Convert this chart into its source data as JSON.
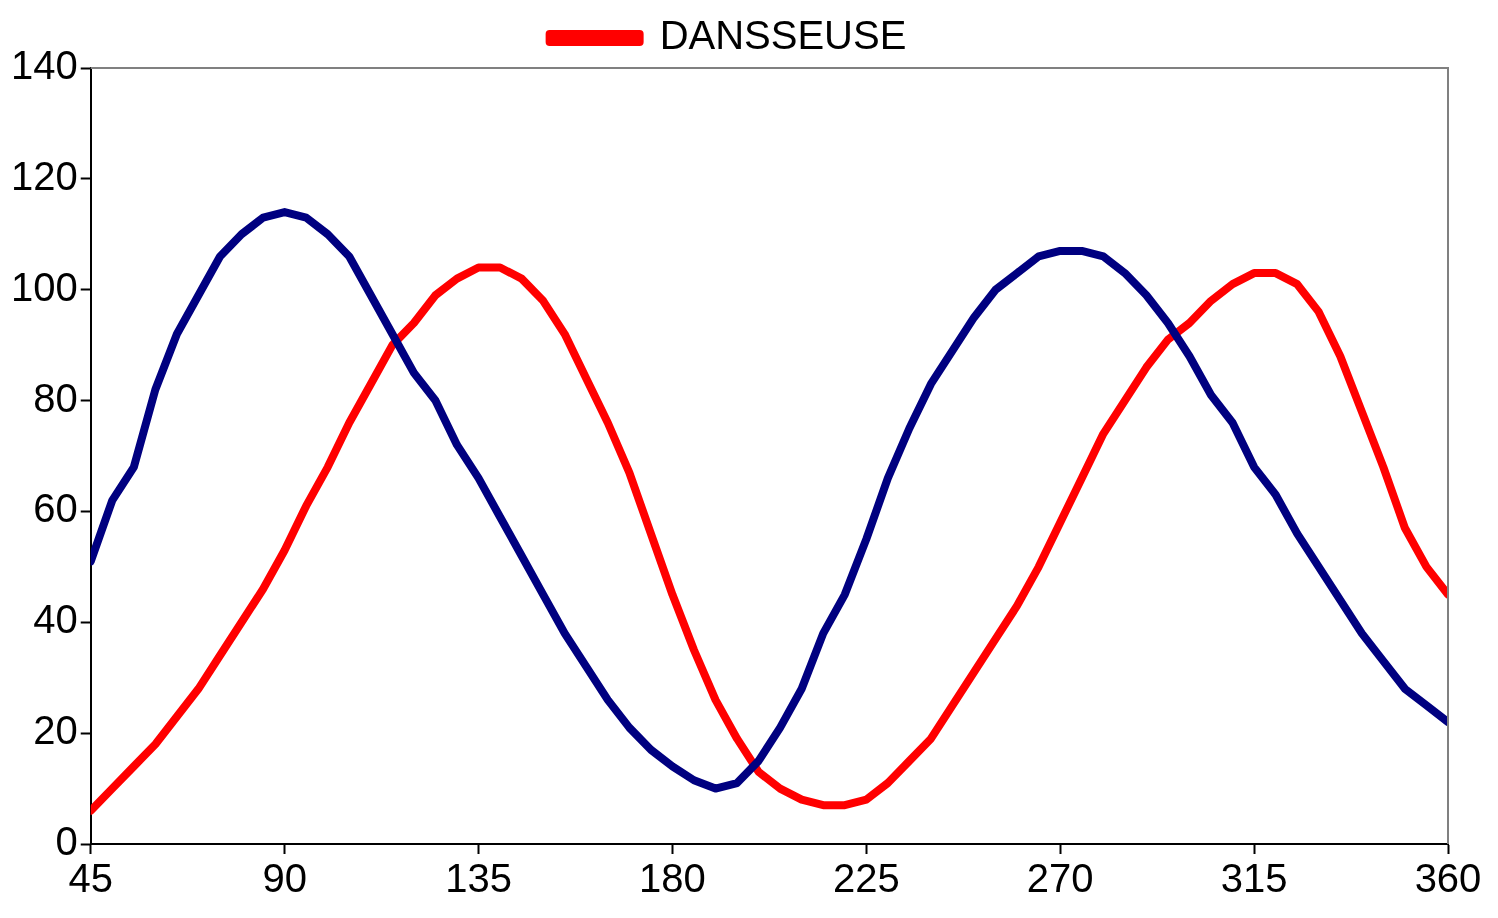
{
  "chart_data": {
    "type": "line",
    "x": [
      45,
      50,
      55,
      60,
      65,
      70,
      75,
      80,
      85,
      90,
      95,
      100,
      105,
      110,
      115,
      120,
      125,
      130,
      135,
      140,
      145,
      150,
      155,
      160,
      165,
      170,
      175,
      180,
      185,
      190,
      195,
      200,
      205,
      210,
      215,
      220,
      225,
      230,
      235,
      240,
      245,
      250,
      255,
      260,
      265,
      270,
      275,
      280,
      285,
      290,
      295,
      300,
      305,
      310,
      315,
      320,
      325,
      330,
      335,
      340,
      345,
      350,
      355,
      360
    ],
    "series": [
      {
        "color": "#000080",
        "values": [
          51,
          62,
          68,
          82,
          92,
          99,
          106,
          110,
          113,
          114,
          113,
          110,
          106,
          99,
          92,
          85,
          80,
          72,
          66,
          59,
          52,
          45,
          38,
          32,
          26,
          21,
          17,
          14,
          11.5,
          10,
          11,
          15,
          21,
          28,
          38,
          45,
          55,
          66,
          75,
          83,
          89,
          95,
          100,
          103,
          106,
          107,
          107,
          106,
          103,
          99,
          94,
          88,
          81,
          76,
          68,
          63,
          56,
          50,
          44,
          38,
          33,
          28,
          25,
          22
        ]
      },
      {
        "name": "DANSSEUSE",
        "color": "#ff0000",
        "values": [
          6,
          10,
          14,
          18,
          23,
          28,
          34,
          40,
          46,
          53,
          61,
          68,
          76,
          83,
          90,
          94,
          99,
          102,
          104,
          104,
          102,
          98,
          92,
          84,
          76,
          67,
          56,
          45,
          35,
          26,
          19,
          13,
          10,
          8,
          7,
          7,
          8,
          11,
          15,
          19,
          25,
          31,
          37,
          43,
          50,
          58,
          66,
          74,
          80,
          86,
          91,
          94,
          98,
          101,
          103,
          103,
          101,
          96,
          88,
          78,
          68,
          57,
          50,
          45
        ]
      }
    ],
    "xlim": [
      45,
      360
    ],
    "xticks": [
      45,
      90,
      135,
      180,
      225,
      270,
      315,
      360
    ],
    "ylim": [
      0,
      140
    ],
    "yticks": [
      0,
      20,
      40,
      60,
      80,
      100,
      120,
      140
    ],
    "grid": false,
    "legend": "top",
    "marker": "none",
    "line_style": "solid"
  }
}
